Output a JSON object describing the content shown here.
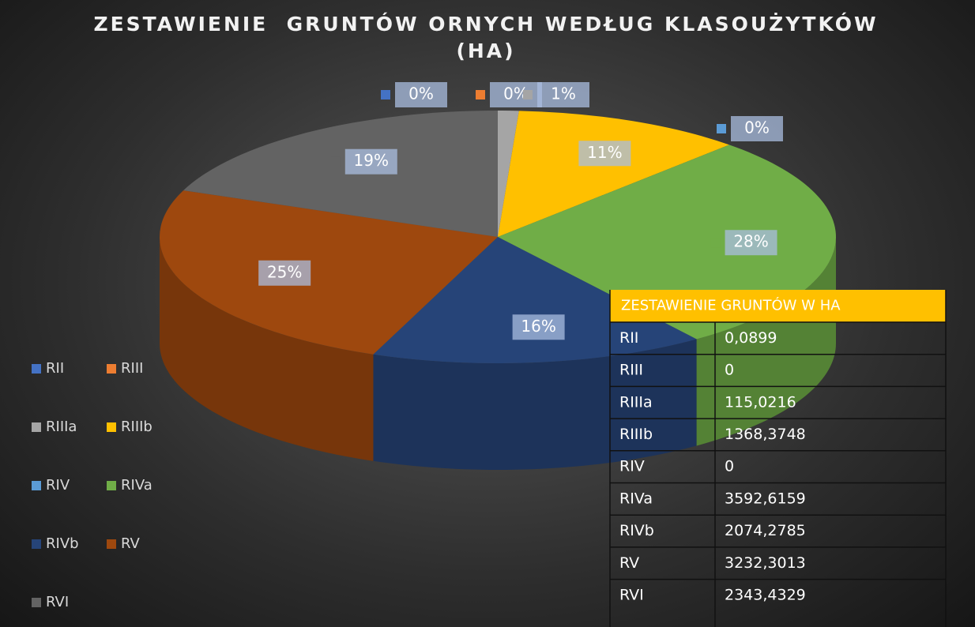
{
  "chart_data": {
    "type": "pie",
    "title": "ZESTAWIENIE  GRUNTÓW ORNYCH WEDŁUG KLASOUŻYTKÓW (HA)",
    "categories": [
      "RII",
      "RIII",
      "RIIIa",
      "RIIIb",
      "RIV",
      "RIVa",
      "RIVb",
      "RV",
      "RVI"
    ],
    "values": [
      0,
      0,
      1,
      11,
      0,
      28,
      16,
      25,
      19
    ],
    "value_labels": [
      "0%",
      "0%",
      "1%",
      "11%",
      "0%",
      "28%",
      "16%",
      "25%",
      "19%"
    ],
    "colors": [
      "#4472C4",
      "#ED7D31",
      "#A5A5A5",
      "#FFC000",
      "#5B9BD5",
      "#70AD47",
      "#264478",
      "#9E480E",
      "#636363"
    ],
    "legend": "left"
  },
  "table": {
    "title": "ZESTAWIENIE GRUNTÓW W HA",
    "rows": [
      [
        "RII",
        "0,0899"
      ],
      [
        "RIII",
        "0"
      ],
      [
        "RIIIa",
        "115,0216"
      ],
      [
        "RIIIb",
        "1368,3748"
      ],
      [
        "RIV",
        "0"
      ],
      [
        "RIVa",
        "3592,6159"
      ],
      [
        "RIVb",
        "2074,2785"
      ],
      [
        "RV",
        "3232,3013"
      ],
      [
        "RVI",
        "2343,4329"
      ]
    ]
  }
}
